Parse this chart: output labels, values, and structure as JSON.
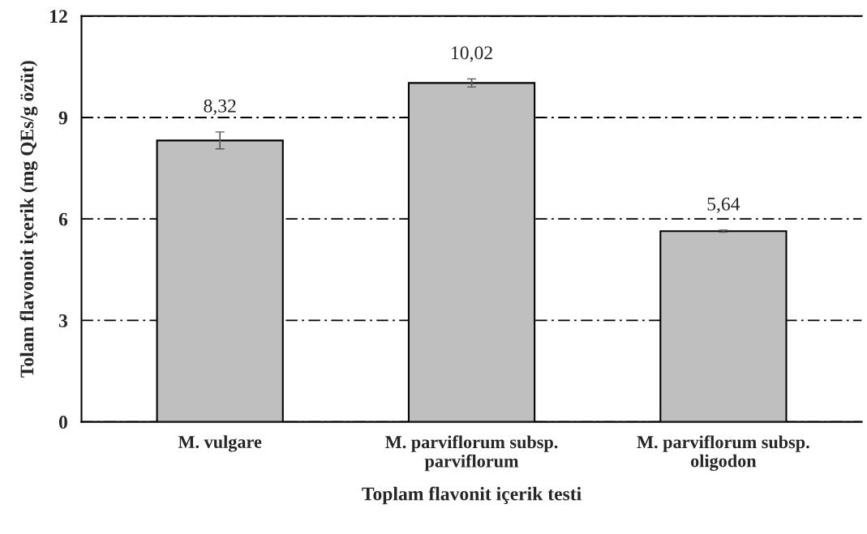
{
  "chart_data": {
    "type": "bar",
    "xlabel": "Toplam flavonit içerik testi",
    "ylabel": "Tolam flavonoit içerik (mg QEs/g özüt)",
    "categories": [
      "M. vulgare",
      "M. parviflorum subsp.\nparviflorum",
      "M. parviflorum subsp.\noligodon"
    ],
    "values": [
      8.32,
      10.02,
      5.64
    ],
    "value_labels": [
      "8,32",
      "10,02",
      "5,64"
    ],
    "errors": [
      0.25,
      0.12,
      0.03
    ],
    "color": "#bfbfbf",
    "ylim": [
      0,
      12
    ],
    "yticks": [
      0,
      3,
      6,
      9,
      12
    ],
    "grid": "y"
  }
}
